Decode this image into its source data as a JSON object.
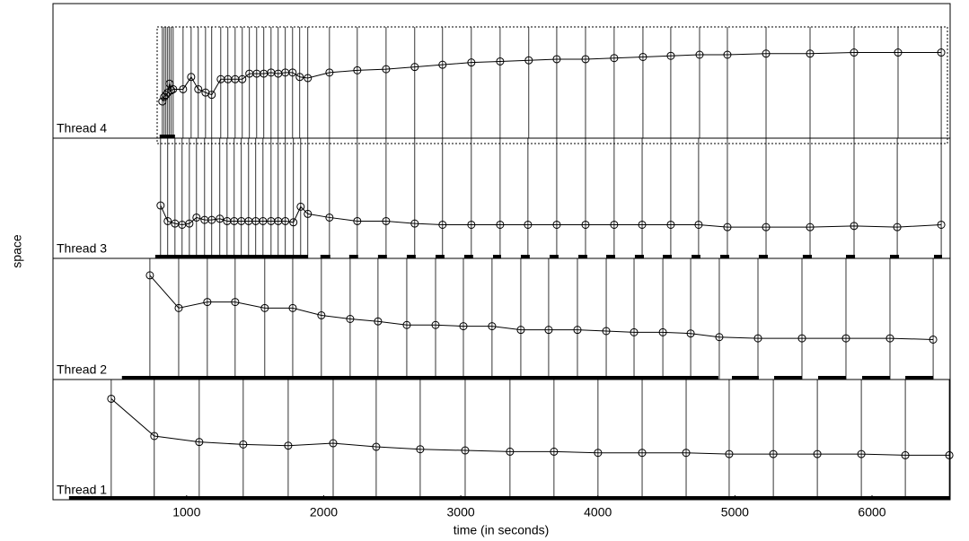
{
  "chart_data": {
    "type": "thread-timeline",
    "xlabel": "time (in seconds)",
    "ylabel": "space",
    "xlim": [
      25,
      6570
    ],
    "xticks": [
      1000,
      2000,
      3000,
      4000,
      5000,
      6000
    ],
    "ylim": [
      0,
      100
    ],
    "color": "#000000",
    "series": [
      {
        "name": "Thread 4",
        "x": [
          823,
          836,
          849,
          862,
          875,
          888,
          902,
          974,
          1033,
          1085,
          1138,
          1183,
          1249,
          1301,
          1354,
          1406,
          1458,
          1511,
          1563,
          1616,
          1668,
          1720,
          1773,
          1825,
          1884,
          2042,
          2245,
          2455,
          2664,
          2867,
          3077,
          3287,
          3496,
          3700,
          3910,
          4119,
          4329,
          4532,
          4742,
          4945,
          5227,
          5548,
          5869,
          6190,
          6505
        ],
        "values": [
          33,
          37,
          39,
          41,
          49,
          43,
          44,
          44,
          55,
          44,
          41,
          39,
          53,
          53,
          53,
          53,
          58,
          58,
          58,
          59,
          58,
          59,
          59,
          55,
          54,
          59,
          61,
          62,
          64,
          66,
          68,
          69,
          70,
          71,
          71,
          72,
          73,
          74,
          75,
          75,
          76,
          76,
          77,
          77,
          77
        ],
        "active": [
          [
            803,
            915
          ]
        ]
      },
      {
        "name": "Thread 3",
        "x": [
          810,
          862,
          915,
          967,
          1020,
          1072,
          1131,
          1183,
          1242,
          1295,
          1347,
          1399,
          1452,
          1504,
          1557,
          1616,
          1668,
          1720,
          1779,
          1832,
          1884,
          2042,
          2245,
          2455,
          2664,
          2867,
          3077,
          3287,
          3490,
          3700,
          3910,
          4119,
          4323,
          4532,
          4735,
          4945,
          5227,
          5548,
          5869,
          6184,
          6505
        ],
        "values": [
          44,
          31,
          29,
          28,
          29,
          34,
          32,
          32,
          33,
          31,
          31,
          31,
          31,
          31,
          31,
          31,
          31,
          31,
          30,
          43,
          37,
          34,
          31,
          31,
          29,
          28,
          28,
          28,
          28,
          28,
          28,
          28,
          28,
          28,
          28,
          26,
          26,
          26,
          27,
          26,
          28
        ],
        "active": [
          [
            771,
            1884
          ],
          [
            1976,
            2048
          ],
          [
            2186,
            2251
          ],
          [
            2396,
            2461
          ],
          [
            2606,
            2671
          ],
          [
            2816,
            2881
          ],
          [
            3025,
            3090
          ],
          [
            3235,
            3294
          ],
          [
            3438,
            3503
          ],
          [
            3648,
            3713
          ],
          [
            3858,
            3923
          ],
          [
            4061,
            4126
          ],
          [
            4270,
            4336
          ],
          [
            4474,
            4539
          ],
          [
            4684,
            4748
          ],
          [
            4893,
            4958
          ],
          [
            5174,
            5240
          ],
          [
            5495,
            5561
          ],
          [
            5810,
            5876
          ],
          [
            6131,
            6197
          ],
          [
            6452,
            6511
          ]
        ]
      },
      {
        "name": "Thread 2",
        "x": [
          732,
          942,
          1151,
          1354,
          1570,
          1774,
          1983,
          2193,
          2396,
          2606,
          2816,
          3019,
          3228,
          3438,
          3641,
          3851,
          4061,
          4264,
          4474,
          4677,
          4886,
          5168,
          5489,
          5810,
          6131,
          6446
        ],
        "values": [
          86,
          59,
          64,
          64,
          59,
          59,
          53,
          50,
          48,
          45,
          45,
          44,
          44,
          41,
          41,
          41,
          40,
          39,
          39,
          38,
          35,
          34,
          34,
          34,
          34,
          33
        ],
        "active": [
          [
            528,
            4879
          ],
          [
            4978,
            5174
          ],
          [
            5286,
            5489
          ],
          [
            5607,
            5810
          ],
          [
            5928,
            6131
          ],
          [
            6243,
            6446
          ]
        ]
      },
      {
        "name": "Thread 1",
        "x": [
          450,
          764,
          1092,
          1413,
          1741,
          2069,
          2383,
          2704,
          3032,
          3359,
          3680,
          4001,
          4323,
          4644,
          4958,
          5280,
          5601,
          5922,
          6243,
          6564
        ],
        "values": [
          84,
          53,
          48,
          46,
          45,
          47,
          44,
          42,
          41,
          40,
          40,
          39,
          39,
          39,
          38,
          38,
          38,
          38,
          37,
          37
        ],
        "active": [
          [
            142,
            6570
          ]
        ]
      }
    ]
  }
}
